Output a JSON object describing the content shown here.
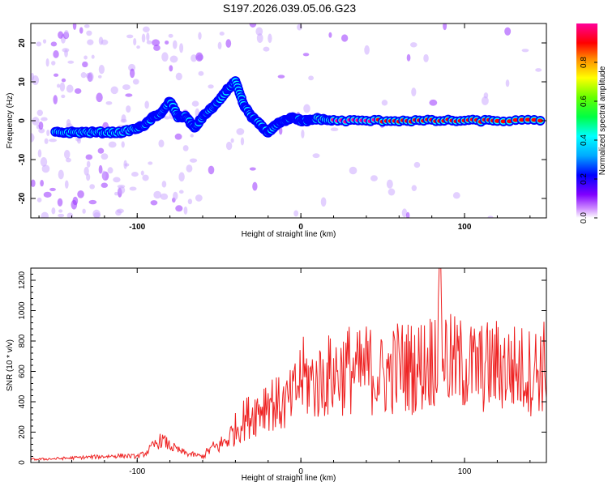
{
  "title": "S197.2026.039.05.06.G23",
  "chart_data": [
    {
      "type": "heatmap",
      "title": "S197.2026.039.05.06.G23",
      "xlabel": "Height of straight line (km)",
      "ylabel": "Frequency (Hz)",
      "xlim": [
        -165,
        150
      ],
      "ylim": [
        -25,
        25
      ],
      "xticks": [
        -100,
        0,
        100
      ],
      "yticks": [
        20,
        10,
        0,
        -10,
        -20
      ],
      "colorbar": {
        "label": "Normalized spectral amplitude",
        "range": [
          0,
          1
        ],
        "ticks": [
          "0.0",
          "0.2",
          "0.4",
          "0.6",
          "0.8"
        ],
        "colors": [
          "#ffffff",
          "#cc88ff",
          "#8000ff",
          "#0000ff",
          "#00ffff",
          "#00ff00",
          "#ffff00",
          "#ff0000",
          "#ff0099"
        ]
      },
      "ridge": {
        "x": [
          -150,
          -140,
          -130,
          -120,
          -110,
          -100,
          -95,
          -90,
          -85,
          -80,
          -75,
          -70,
          -65,
          -60,
          -55,
          -50,
          -45,
          -40,
          -35,
          -30,
          -25,
          -20,
          -15,
          -10,
          -5,
          0,
          5,
          10,
          20,
          40,
          60,
          80,
          100,
          120,
          150
        ],
        "y": [
          -3,
          -3,
          -3,
          -3,
          -3,
          -2,
          -1,
          1,
          2,
          5,
          1,
          1,
          -2,
          1,
          3,
          5,
          8,
          10,
          4,
          1,
          -1,
          -3,
          -1,
          0,
          1,
          0,
          0,
          0.5,
          0,
          0,
          0,
          0,
          0,
          0,
          0
        ],
        "amplitude": [
          0.3,
          0.35,
          0.35,
          0.35,
          0.3,
          0.3,
          0.35,
          0.4,
          0.4,
          0.4,
          0.3,
          0.45,
          0.3,
          0.35,
          0.4,
          0.4,
          0.4,
          0.45,
          0.35,
          0.3,
          0.3,
          0.3,
          0.35,
          0.4,
          0.5,
          0.5,
          0.5,
          0.85,
          0.95,
          0.95,
          0.9,
          0.9,
          0.85,
          0.9,
          0.85
        ]
      }
    },
    {
      "type": "line",
      "xlabel": "Height of straight line (km)",
      "ylabel": "SNR (10 * v/v)",
      "xlim": [
        -165,
        150
      ],
      "ylim": [
        0,
        1280
      ],
      "xticks": [
        -100,
        0,
        100
      ],
      "yticks": [
        0,
        200,
        400,
        600,
        800,
        1000,
        1200
      ],
      "series": [
        {
          "name": "SNR",
          "color": "#ee2222",
          "x": [
            -165,
            -150,
            -130,
            -110,
            -100,
            -95,
            -90,
            -85,
            -80,
            -75,
            -70,
            -65,
            -60,
            -55,
            -50,
            -45,
            -40,
            -35,
            -30,
            -25,
            -20,
            -15,
            -10,
            -5,
            0,
            5,
            10,
            15,
            20,
            25,
            30,
            35,
            40,
            45,
            50,
            60,
            70,
            80,
            85,
            90,
            100,
            110,
            120,
            130,
            140,
            150
          ],
          "values": [
            20,
            25,
            35,
            45,
            40,
            60,
            110,
            150,
            110,
            80,
            60,
            50,
            40,
            90,
            110,
            150,
            220,
            280,
            320,
            360,
            420,
            380,
            380,
            420,
            560,
            540,
            520,
            560,
            580,
            600,
            620,
            580,
            620,
            600,
            560,
            640,
            620,
            680,
            820,
            660,
            640,
            620,
            640,
            620,
            600,
            640
          ],
          "max_value": 1280
        }
      ]
    }
  ]
}
